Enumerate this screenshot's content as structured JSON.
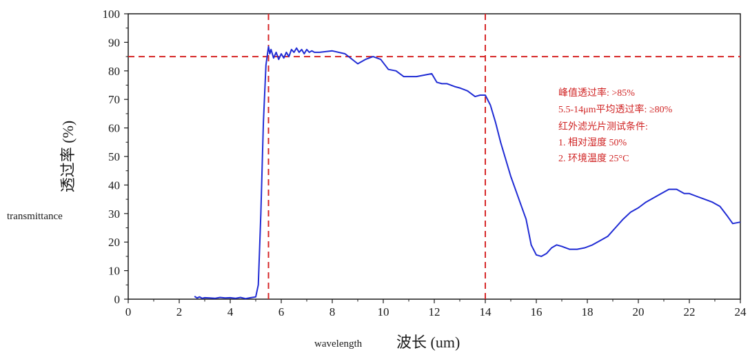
{
  "chart_data": {
    "type": "line",
    "ylabel": "透过率 (%)",
    "ylabel_en": "transmittance",
    "xlabel": "波长 (um)",
    "xlabel_en": "wavelength",
    "xlim": [
      0,
      24
    ],
    "ylim": [
      0,
      100
    ],
    "x_ticks": [
      "0",
      "2",
      "4",
      "6",
      "8",
      "10",
      "12",
      "14",
      "16",
      "18",
      "20",
      "22",
      "24"
    ],
    "y_ticks": [
      "0",
      "10",
      "20",
      "30",
      "40",
      "50",
      "60",
      "70",
      "80",
      "90",
      "100"
    ],
    "grid": false,
    "line_color": "#1f2bd4",
    "ref_color": "#d62728",
    "reference_lines": {
      "hline_y": 85,
      "vline_x": [
        5.5,
        14
      ]
    },
    "annotations": [
      "峰值透过率: >85%",
      "5.5-14μm平均透过率: ≥80%",
      "红外滤光片测试条件:",
      "1. 相对湿度 50%",
      "2. 环境温度 25°C"
    ],
    "series": [
      {
        "x": [
          2.6,
          2.7,
          2.8,
          2.9,
          3.0,
          3.2,
          3.4,
          3.6,
          3.8,
          4.0,
          4.2,
          4.4,
          4.6,
          4.8,
          5.0,
          5.1,
          5.2,
          5.3,
          5.4,
          5.5,
          5.55,
          5.6,
          5.7,
          5.8,
          5.9,
          6.0,
          6.1,
          6.2,
          6.3,
          6.4,
          6.5,
          6.6,
          6.7,
          6.8,
          6.9,
          7.0,
          7.1,
          7.2,
          7.3,
          7.5,
          8.0,
          8.5,
          9.0,
          9.3,
          9.6,
          9.9,
          10.2,
          10.5,
          10.8,
          11.0,
          11.3,
          11.6,
          11.9,
          12.1,
          12.3,
          12.5,
          12.8,
          13.0,
          13.3,
          13.6,
          13.8,
          14.0,
          14.2,
          14.4,
          14.6,
          14.8,
          15.0,
          15.2,
          15.4,
          15.6,
          15.8,
          16.0,
          16.2,
          16.4,
          16.6,
          16.8,
          17.0,
          17.3,
          17.6,
          17.9,
          18.2,
          18.5,
          18.8,
          19.1,
          19.4,
          19.7,
          20.0,
          20.3,
          20.6,
          20.9,
          21.2,
          21.5,
          21.8,
          22.0,
          22.3,
          22.6,
          22.9,
          23.2,
          23.5,
          23.7,
          24.0
        ],
        "y": [
          1.0,
          0.4,
          0.8,
          0.3,
          0.5,
          0.4,
          0.3,
          0.6,
          0.4,
          0.5,
          0.3,
          0.6,
          0.2,
          0.5,
          0.8,
          5.0,
          30.0,
          62.0,
          82.0,
          88.5,
          86.0,
          87.5,
          84.5,
          86.5,
          84.0,
          86.0,
          84.5,
          86.5,
          85.0,
          87.5,
          86.5,
          88.0,
          86.5,
          87.5,
          86.0,
          87.5,
          86.5,
          87.0,
          86.5,
          86.5,
          87.0,
          86.0,
          82.5,
          84.0,
          85.0,
          84.0,
          80.5,
          80.0,
          78.0,
          78.0,
          78.0,
          78.5,
          79.0,
          76.0,
          75.5,
          75.5,
          74.5,
          74.0,
          73.0,
          71.0,
          71.5,
          71.5,
          68.0,
          62.0,
          55.0,
          49.0,
          43.0,
          38.0,
          33.0,
          28.0,
          19.0,
          15.5,
          15.0,
          16.0,
          18.0,
          19.0,
          18.5,
          17.5,
          17.5,
          18.0,
          19.0,
          20.5,
          22.0,
          25.0,
          28.0,
          30.5,
          32.0,
          34.0,
          35.5,
          37.0,
          38.5,
          38.5,
          37.0,
          37.0,
          36.0,
          35.0,
          34.0,
          32.5,
          29.0,
          26.5,
          27.0
        ]
      }
    ]
  }
}
